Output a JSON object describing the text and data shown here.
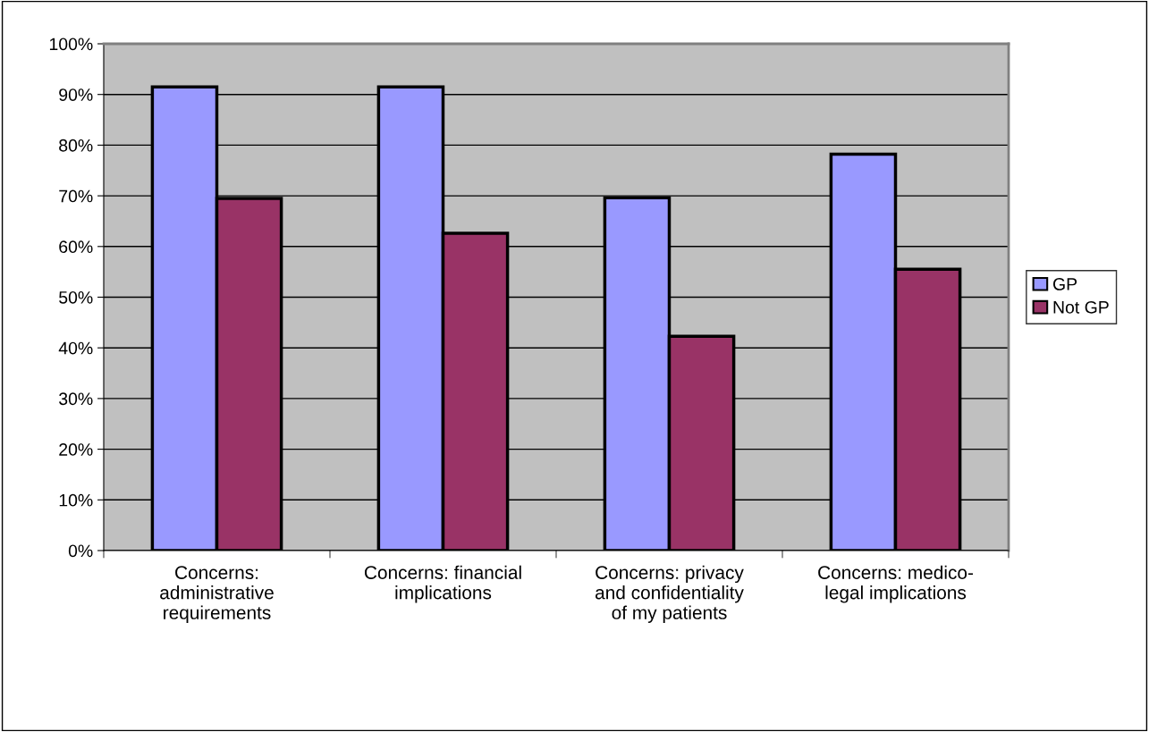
{
  "chart_data": {
    "type": "bar",
    "categories": [
      "Concerns:\nadministrative\nrequirements",
      "Concerns: financial\nimplications",
      "Concerns: privacy\nand confidentiality\nof my patients",
      "Concerns: medico-\nlegal implications"
    ],
    "series": [
      {
        "name": "GP",
        "color": "#9999ff",
        "values": [
          91.5,
          91.5,
          69.6,
          78.2
        ]
      },
      {
        "name": "Not GP",
        "color": "#993366",
        "values": [
          69.5,
          62.6,
          42.3,
          55.5
        ]
      }
    ],
    "ylim": [
      0,
      100
    ],
    "yticks": [
      {
        "value": 0,
        "label": "0%"
      },
      {
        "value": 10,
        "label": "10%"
      },
      {
        "value": 20,
        "label": "20%"
      },
      {
        "value": 30,
        "label": "30%"
      },
      {
        "value": 40,
        "label": "40%"
      },
      {
        "value": 50,
        "label": "50%"
      },
      {
        "value": 60,
        "label": "60%"
      },
      {
        "value": 70,
        "label": "70%"
      },
      {
        "value": 80,
        "label": "80%"
      },
      {
        "value": 90,
        "label": "90%"
      },
      {
        "value": 100,
        "label": "100%"
      }
    ],
    "grid": "y",
    "legend": "right"
  }
}
